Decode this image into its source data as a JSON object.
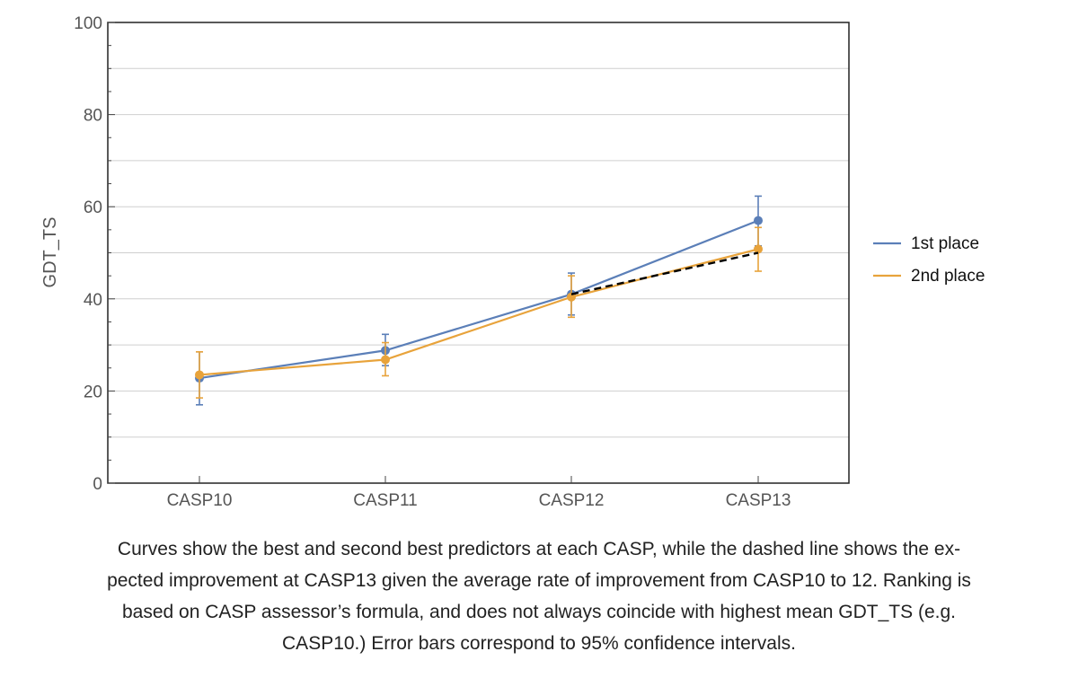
{
  "chart_data": {
    "type": "line",
    "title": "",
    "xlabel": "",
    "ylabel": "GDT_TS",
    "ylim": [
      0,
      100
    ],
    "yticks": [
      0,
      20,
      40,
      60,
      80,
      100
    ],
    "grid": true,
    "legend": "right",
    "categories": [
      "CASP10",
      "CASP11",
      "CASP12",
      "CASP13"
    ],
    "series": [
      {
        "name": "1st place",
        "color": "#5b7fb8",
        "values": [
          22.8,
          28.8,
          41.0,
          57.0
        ],
        "error_low": [
          17.0,
          25.5,
          36.5,
          51.5
        ],
        "error_high": [
          28.5,
          32.3,
          45.6,
          62.3
        ]
      },
      {
        "name": "2nd place",
        "color": "#e8a33b",
        "values": [
          23.5,
          26.8,
          40.4,
          50.8
        ],
        "error_low": [
          18.5,
          23.3,
          36.0,
          46.0
        ],
        "error_high": [
          28.5,
          30.5,
          45.0,
          55.5
        ]
      }
    ],
    "expected_line": {
      "style": "dashed",
      "color": "#000000",
      "from": {
        "category": "CASP12",
        "value": 41.0
      },
      "to": {
        "category": "CASP13",
        "value": 50.0
      }
    }
  },
  "caption": {
    "lines": [
      "Curves show the best and second best predictors at each CASP, while the dashed line shows the ex-",
      "pected improvement at CASP13 given the average rate of improvement from CASP10 to 12. Ranking is",
      "based on CASP assessor’s formula, and does not always coincide with highest mean GDT_TS (e.g.",
      "CASP10.) Error bars correspond to 95% confidence intervals."
    ]
  }
}
